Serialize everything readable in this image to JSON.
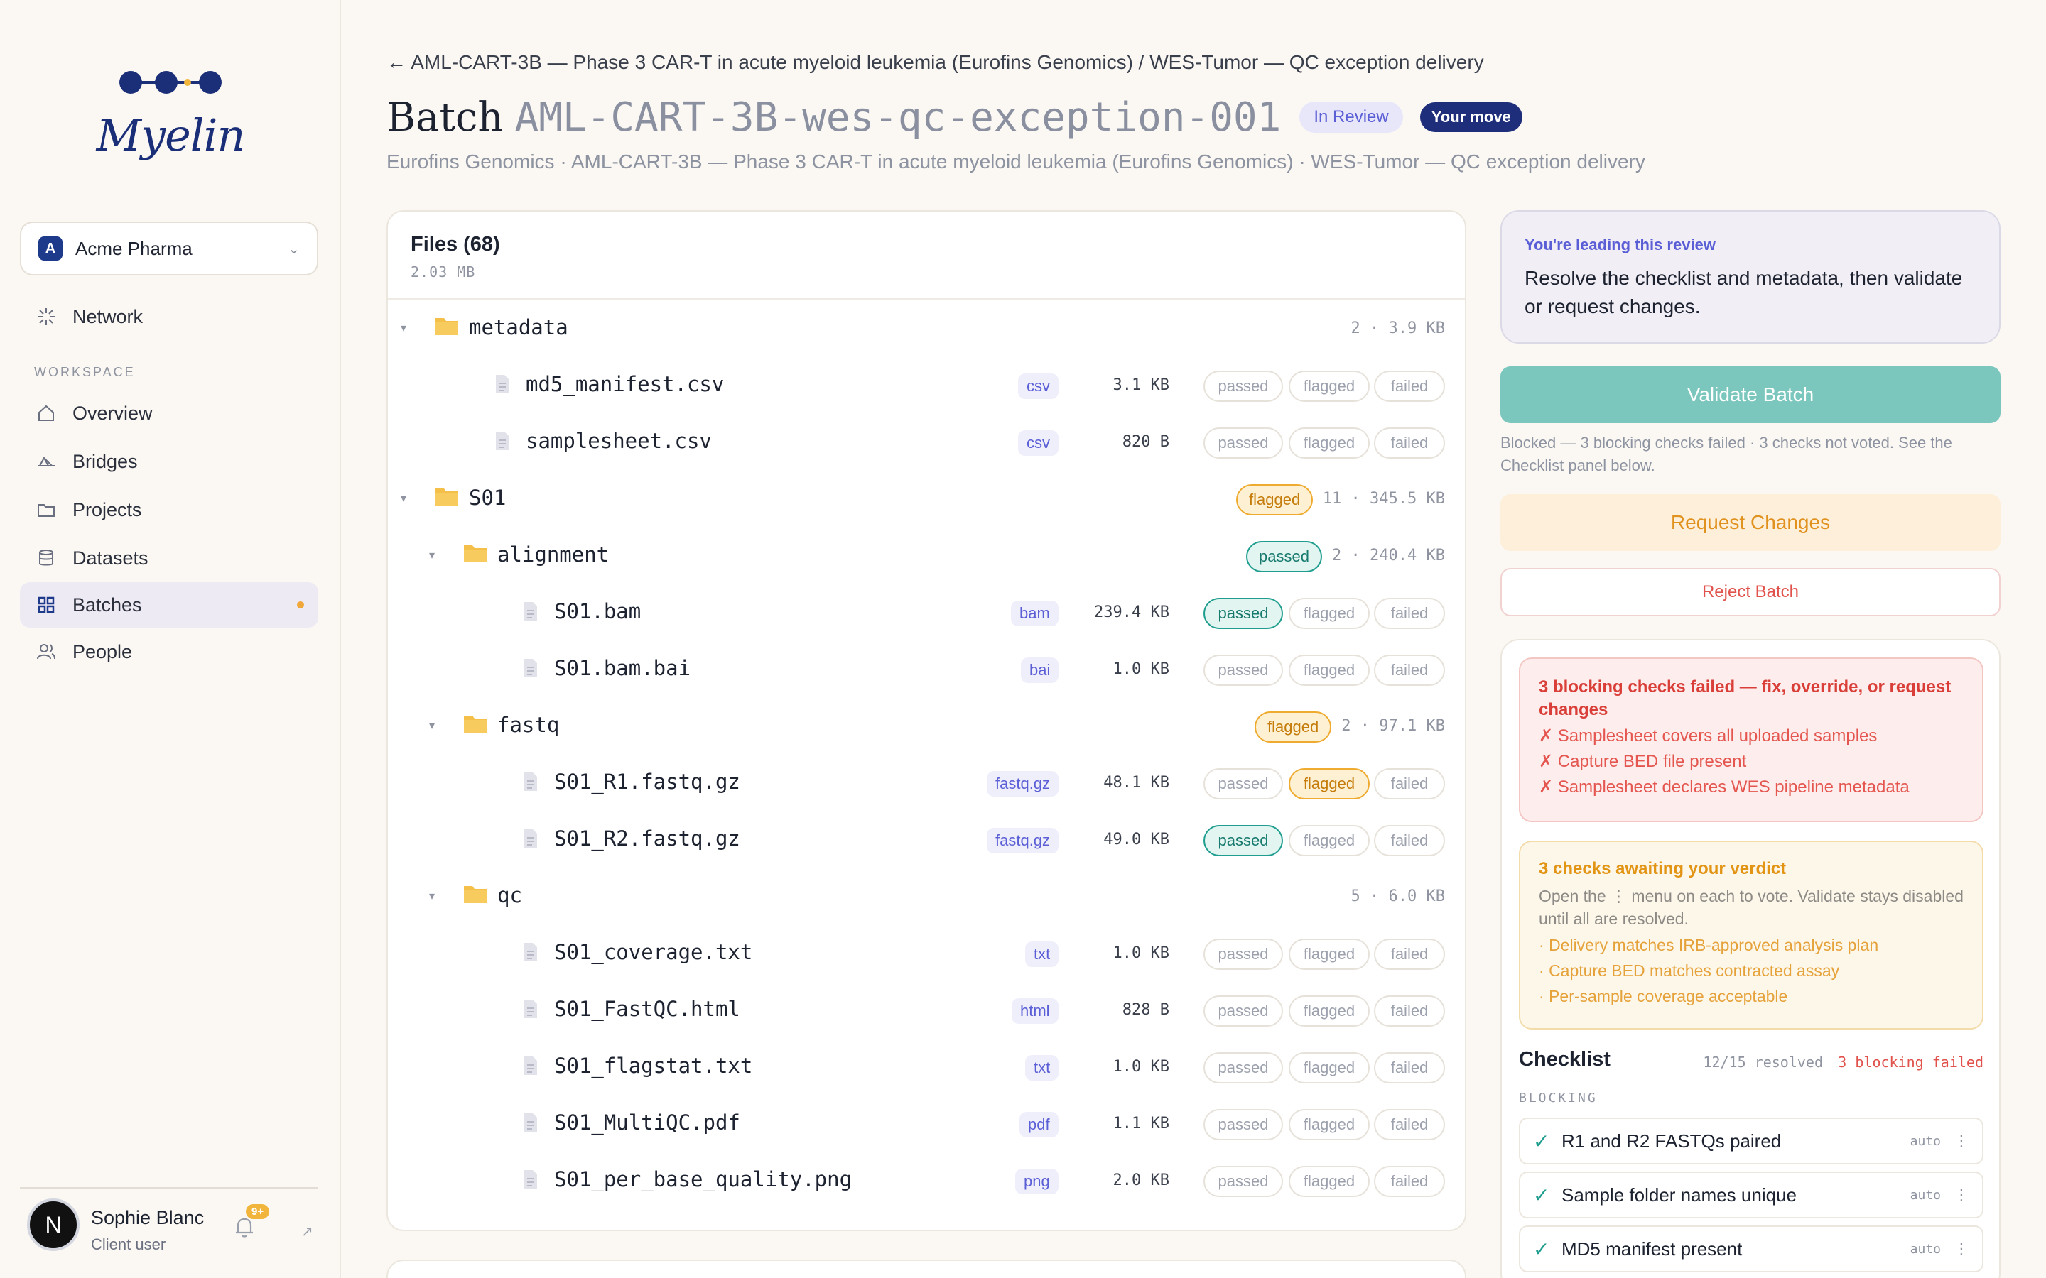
{
  "brand": {
    "name": "Myelin"
  },
  "org": {
    "name": "Acme Pharma",
    "initial": "A"
  },
  "nav": {
    "network": "Network",
    "section": "WORKSPACE",
    "items": [
      {
        "label": "Overview",
        "icon": "home-icon"
      },
      {
        "label": "Bridges",
        "icon": "bridge-icon"
      },
      {
        "label": "Projects",
        "icon": "folder-icon"
      },
      {
        "label": "Datasets",
        "icon": "database-icon"
      },
      {
        "label": "Batches",
        "icon": "grid-icon",
        "active": true
      },
      {
        "label": "People",
        "icon": "people-icon"
      }
    ]
  },
  "user": {
    "name": "Sophie Blanc",
    "role": "Client user",
    "initial": "N",
    "notifications": "9+"
  },
  "header": {
    "breadcrumb": "← AML-CART-3B — Phase 3 CAR-T in acute myeloid leukemia (Eurofins Genomics) / WES-Tumor — QC exception delivery",
    "title_word": "Batch",
    "title_id": "AML-CART-3B-wes-qc-exception-001",
    "status_badge": "In Review",
    "move_badge": "Your move",
    "subtitle": "Eurofins Genomics · AML-CART-3B — Phase 3 CAR-T in acute myeloid leukemia (Eurofins Genomics) · WES-Tumor — QC exception delivery"
  },
  "files": {
    "title": "Files (68)",
    "total_size": "2.03 MB",
    "vote_labels": {
      "passed": "passed",
      "flagged": "flagged",
      "failed": "failed"
    },
    "rows": [
      {
        "kind": "folder",
        "depth": 0,
        "name": "metadata",
        "meta": "2 · 3.9 KB",
        "status": ""
      },
      {
        "kind": "file",
        "depth": 1,
        "name": "md5_manifest.csv",
        "ext": "csv",
        "size": "3.1 KB",
        "vote": ""
      },
      {
        "kind": "file",
        "depth": 1,
        "name": "samplesheet.csv",
        "ext": "csv",
        "size": "820 B",
        "vote": ""
      },
      {
        "kind": "folder",
        "depth": 0,
        "name": "S01",
        "meta": "11 · 345.5 KB",
        "status": "flagged"
      },
      {
        "kind": "folder",
        "depth": 1,
        "name": "alignment",
        "meta": "2 · 240.4 KB",
        "status": "passed"
      },
      {
        "kind": "file",
        "depth": 2,
        "name": "S01.bam",
        "ext": "bam",
        "size": "239.4 KB",
        "vote": "passed"
      },
      {
        "kind": "file",
        "depth": 2,
        "name": "S01.bam.bai",
        "ext": "bai",
        "size": "1.0 KB",
        "vote": ""
      },
      {
        "kind": "folder",
        "depth": 1,
        "name": "fastq",
        "meta": "2 · 97.1 KB",
        "status": "flagged"
      },
      {
        "kind": "file",
        "depth": 2,
        "name": "S01_R1.fastq.gz",
        "ext": "fastq.gz",
        "size": "48.1 KB",
        "vote": "flagged"
      },
      {
        "kind": "file",
        "depth": 2,
        "name": "S01_R2.fastq.gz",
        "ext": "fastq.gz",
        "size": "49.0 KB",
        "vote": "passed"
      },
      {
        "kind": "folder",
        "depth": 1,
        "name": "qc",
        "meta": "5 · 6.0 KB",
        "status": ""
      },
      {
        "kind": "file",
        "depth": 2,
        "name": "S01_coverage.txt",
        "ext": "txt",
        "size": "1.0 KB",
        "vote": ""
      },
      {
        "kind": "file",
        "depth": 2,
        "name": "S01_FastQC.html",
        "ext": "html",
        "size": "828 B",
        "vote": ""
      },
      {
        "kind": "file",
        "depth": 2,
        "name": "S01_flagstat.txt",
        "ext": "txt",
        "size": "1.0 KB",
        "vote": ""
      },
      {
        "kind": "file",
        "depth": 2,
        "name": "S01_MultiQC.pdf",
        "ext": "pdf",
        "size": "1.1 KB",
        "vote": ""
      },
      {
        "kind": "file",
        "depth": 2,
        "name": "S01_per_base_quality.png",
        "ext": "png",
        "size": "2.0 KB",
        "vote": ""
      }
    ]
  },
  "review": {
    "lead_title": "You're leading this review",
    "lead_text": "Resolve the checklist and metadata, then validate or request changes.",
    "validate_label": "Validate Batch",
    "blocked_note": "Blocked — 3 blocking checks failed · 3 checks not voted. See the Checklist panel below.",
    "request_label": "Request Changes",
    "reject_label": "Reject Batch"
  },
  "alerts": {
    "fail_title": "3 blocking checks failed — fix, override, or request changes",
    "fail_items": [
      "Samplesheet covers all uploaded samples",
      "Capture BED file present",
      "Samplesheet declares WES pipeline metadata"
    ],
    "wait_title": "3 checks awaiting your verdict",
    "wait_desc": "Open the ⋮ menu on each to vote. Validate stays disabled until all are resolved.",
    "wait_items": [
      "Delivery matches IRB-approved analysis plan",
      "Capture BED matches contracted assay",
      "Per-sample coverage acceptable"
    ]
  },
  "checklist": {
    "title": "Checklist",
    "resolved": "12/15 resolved",
    "failed": "3 blocking failed",
    "section": "BLOCKING",
    "items": [
      {
        "label": "R1 and R2 FASTQs paired",
        "mode": "auto"
      },
      {
        "label": "Sample folder names unique",
        "mode": "auto"
      },
      {
        "label": "MD5 manifest present",
        "mode": "auto"
      }
    ]
  },
  "colors": {
    "accent": "#1e3a8a",
    "review": "#5b5fd6",
    "passed": "#1f9e8f",
    "flagged": "#efab2f",
    "failed": "#e0524b",
    "background": "#fbf8f3"
  }
}
